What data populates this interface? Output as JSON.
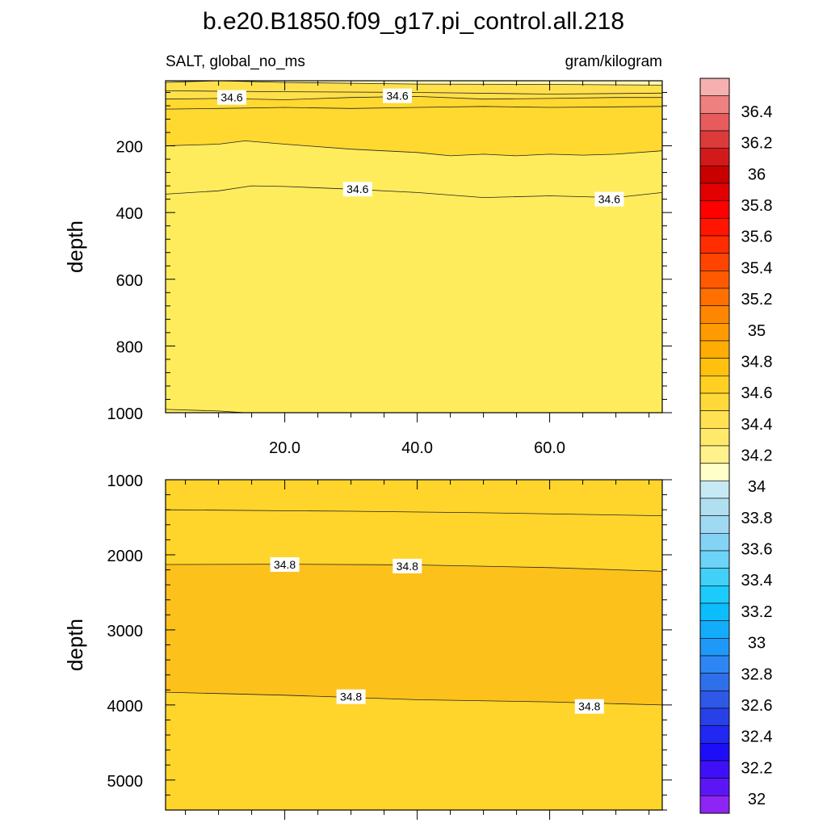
{
  "figure": {
    "title": "b.e20.B1850.f09_g17.pi_control.all.218",
    "left_string": "SALT, global_no_ms",
    "right_string": "gram/kilogram"
  },
  "chart_data": [
    {
      "type": "contour",
      "panel": "upper",
      "ylabel": "depth",
      "xlabel": "",
      "xlim": [
        2,
        77
      ],
      "ylim": [
        1000,
        5
      ],
      "x_ticks": [
        20,
        40,
        60
      ],
      "x_tick_labels": [
        "20.0",
        "40.0",
        "60.0"
      ],
      "y_ticks": [
        200,
        400,
        600,
        800,
        1000
      ],
      "y_tick_labels": [
        "200",
        "400",
        "600",
        "800",
        "1000"
      ],
      "filled_bands": [
        {
          "color": "#fff8b4",
          "from_depth": "top",
          "to_curve": 0
        },
        {
          "color": "#ffe04a",
          "from_curve": 0,
          "to_curve": 2
        },
        {
          "color": "#ffd930",
          "from_curve": 2,
          "to_curve": 4
        },
        {
          "color": "#ffec5c",
          "from_curve": 4,
          "to_depth": "bottom"
        }
      ],
      "contours": [
        {
          "x": [
            2,
            5,
            10,
            20,
            40,
            60,
            77
          ],
          "depth": [
            10,
            8,
            5,
            10,
            15,
            16,
            18
          ]
        },
        {
          "x": [
            2,
            20,
            40,
            60,
            77
          ],
          "depth": [
            35,
            38,
            40,
            45,
            42
          ]
        },
        {
          "x": [
            2,
            10,
            20,
            30,
            40,
            50,
            60,
            70,
            77
          ],
          "depth": [
            60,
            58,
            62,
            55,
            52,
            60,
            58,
            55,
            55
          ]
        },
        {
          "x": [
            2,
            10,
            20,
            30,
            40,
            50,
            60,
            77
          ],
          "depth": [
            90,
            88,
            85,
            88,
            85,
            82,
            85,
            82
          ]
        },
        {
          "x": [
            2,
            10,
            14,
            20,
            30,
            40,
            45,
            50,
            55,
            60,
            65,
            70,
            77
          ],
          "depth": [
            200,
            195,
            185,
            195,
            210,
            220,
            230,
            225,
            230,
            225,
            228,
            225,
            215
          ]
        },
        {
          "x": [
            2,
            10,
            15,
            20,
            30,
            40,
            50,
            60,
            70,
            77
          ],
          "depth": [
            345,
            335,
            320,
            322,
            330,
            340,
            355,
            350,
            355,
            340
          ]
        },
        {
          "x": [
            2,
            10,
            14
          ],
          "depth": [
            990,
            995,
            1000
          ]
        }
      ],
      "contour_labels": [
        {
          "text": "34.6",
          "x": 12,
          "depth": 55
        },
        {
          "text": "34.6",
          "x": 37,
          "depth": 50
        },
        {
          "text": "34.6",
          "x": 31,
          "depth": 330
        },
        {
          "text": "34.6",
          "x": 69,
          "depth": 360
        }
      ]
    },
    {
      "type": "contour",
      "panel": "lower",
      "ylabel": "depth",
      "xlabel": "",
      "xlim": [
        2,
        77
      ],
      "ylim": [
        5400,
        1000
      ],
      "x_ticks": [
        20,
        40,
        60
      ],
      "y_ticks": [
        1000,
        2000,
        3000,
        4000,
        5000
      ],
      "y_tick_labels": [
        "1000",
        "2000",
        "3000",
        "4000",
        "5000"
      ],
      "filled_bands": [
        {
          "color": "#ffd52c",
          "from_depth": "top",
          "to_curve": 1
        },
        {
          "color": "#fdc11c",
          "from_curve": 1,
          "to_curve": 2
        },
        {
          "color": "#ffd52c",
          "from_curve": 2,
          "to_depth": "bottom"
        }
      ],
      "contours": [
        {
          "x": [
            2,
            30,
            50,
            77
          ],
          "depth": [
            1400,
            1420,
            1440,
            1480
          ]
        },
        {
          "x": [
            2,
            20,
            40,
            60,
            77
          ],
          "depth": [
            2130,
            2125,
            2135,
            2170,
            2220
          ]
        },
        {
          "x": [
            2,
            20,
            40,
            60,
            77
          ],
          "depth": [
            3830,
            3870,
            3930,
            3960,
            4000
          ]
        }
      ],
      "contour_labels": [
        {
          "text": "34.8",
          "x": 20,
          "depth": 2130
        },
        {
          "text": "34.8",
          "x": 38.5,
          "depth": 2150
        },
        {
          "text": "34.8",
          "x": 30,
          "depth": 3890
        },
        {
          "text": "34.8",
          "x": 66,
          "depth": 4020
        }
      ]
    },
    {
      "type": "colorbar",
      "labels": [
        "32",
        "32.2",
        "32.4",
        "32.6",
        "32.8",
        "33",
        "33.2",
        "33.4",
        "33.6",
        "33.8",
        "34",
        "34.2",
        "34.4",
        "34.6",
        "34.8",
        "35",
        "35.2",
        "35.4",
        "35.6",
        "35.8",
        "36",
        "36.2",
        "36.4"
      ],
      "colors": [
        "#8e25f5",
        "#5c16f6",
        "#3f10f7",
        "#1e0ef8",
        "#2028f2",
        "#2840e8",
        "#2e58e6",
        "#2e6fea",
        "#2d86f3",
        "#1f99f8",
        "#13acfb",
        "#0dbcfc",
        "#1ccbfb",
        "#40d0f8",
        "#6bd4f8",
        "#85d3f4",
        "#a0d9f2",
        "#b0dff0",
        "#c7e9f4",
        "#ffffca",
        "#fff28a",
        "#ffe96a",
        "#ffe152",
        "#ffd93a",
        "#ffcf22",
        "#ffc10e",
        "#ffad04",
        "#ff9a02",
        "#ff8601",
        "#ff7000",
        "#ff5a00",
        "#ff4400",
        "#ff2d00",
        "#ff1500",
        "#ff0000",
        "#e30000",
        "#c80000",
        "#d21a1a",
        "#dd3a3a",
        "#e65b5b",
        "#ee8080",
        "#f7b0b0"
      ]
    }
  ]
}
